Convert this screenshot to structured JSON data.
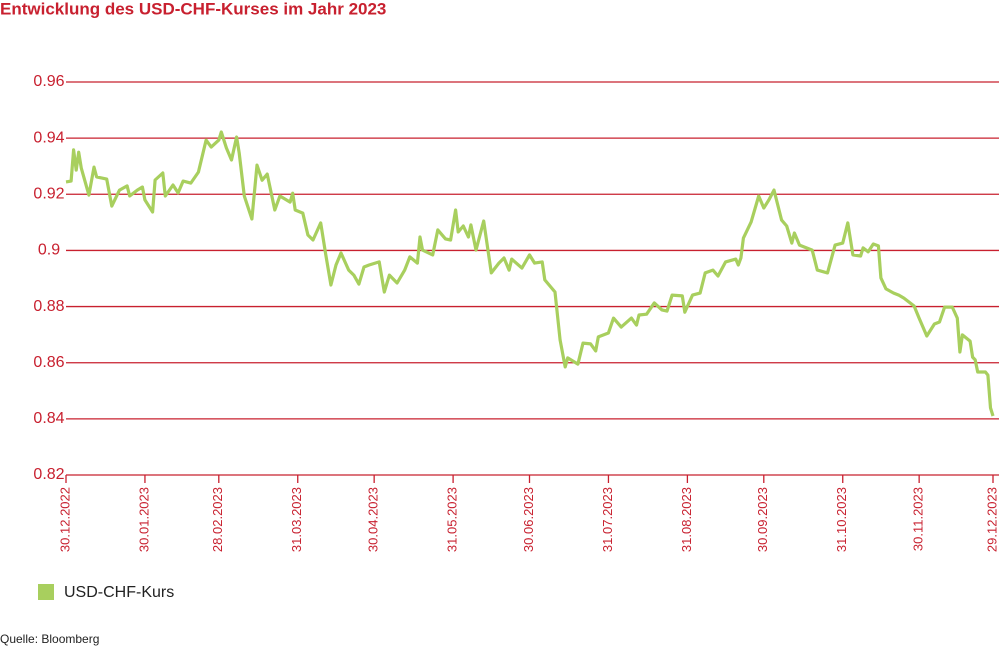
{
  "chart_data": {
    "type": "line",
    "title": "Entwicklung des USD-CHF-Kurses im Jahr 2023",
    "source": "Quelle: Bloomberg",
    "grid": true,
    "legend": "bottom-left",
    "x": [
      "2022-12-30",
      "2023-01-01",
      "2023-01-02",
      "2023-01-03",
      "2023-01-04",
      "2023-01-05",
      "2023-01-08",
      "2023-01-10",
      "2023-01-11",
      "2023-01-15",
      "2023-01-17",
      "2023-01-20",
      "2023-01-23",
      "2023-01-24",
      "2023-01-27",
      "2023-01-29",
      "2023-01-30",
      "2023-02-02",
      "2023-02-03",
      "2023-02-06",
      "2023-02-07",
      "2023-02-10",
      "2023-02-12",
      "2023-02-14",
      "2023-02-17",
      "2023-02-20",
      "2023-02-23",
      "2023-02-25",
      "2023-02-28",
      "2023-03-01",
      "2023-03-03",
      "2023-03-05",
      "2023-03-07",
      "2023-03-08",
      "2023-03-10",
      "2023-03-13",
      "2023-03-15",
      "2023-03-17",
      "2023-03-19",
      "2023-03-22",
      "2023-03-24",
      "2023-03-28",
      "2023-03-29",
      "2023-03-30",
      "2023-04-02",
      "2023-04-04",
      "2023-04-06",
      "2023-04-09",
      "2023-04-11",
      "2023-04-13",
      "2023-04-15",
      "2023-04-17",
      "2023-04-20",
      "2023-04-22",
      "2023-04-24",
      "2023-04-26",
      "2023-04-28",
      "2023-05-02",
      "2023-05-04",
      "2023-05-06",
      "2023-05-09",
      "2023-05-12",
      "2023-05-14",
      "2023-05-17",
      "2023-05-18",
      "2023-05-19",
      "2023-05-23",
      "2023-05-25",
      "2023-05-28",
      "2023-05-30",
      "2023-06-01",
      "2023-06-02",
      "2023-06-04",
      "2023-06-06",
      "2023-06-07",
      "2023-06-09",
      "2023-06-12",
      "2023-06-15",
      "2023-06-18",
      "2023-06-20",
      "2023-06-22",
      "2023-06-23",
      "2023-06-27",
      "2023-06-30",
      "2023-07-02",
      "2023-07-05",
      "2023-07-06",
      "2023-07-10",
      "2023-07-12",
      "2023-07-14",
      "2023-07-15",
      "2023-07-19",
      "2023-07-21",
      "2023-07-24",
      "2023-07-26",
      "2023-07-27",
      "2023-07-31",
      "2023-08-02",
      "2023-08-05",
      "2023-08-09",
      "2023-08-11",
      "2023-08-12",
      "2023-08-15",
      "2023-08-18",
      "2023-08-21",
      "2023-08-23",
      "2023-08-25",
      "2023-08-29",
      "2023-08-30",
      "2023-09-02",
      "2023-09-05",
      "2023-09-07",
      "2023-09-10",
      "2023-09-12",
      "2023-09-15",
      "2023-09-19",
      "2023-09-20",
      "2023-09-21",
      "2023-09-22",
      "2023-09-25",
      "2023-09-28",
      "2023-09-30",
      "2023-10-02",
      "2023-10-04",
      "2023-10-07",
      "2023-10-09",
      "2023-10-11",
      "2023-10-12",
      "2023-10-14",
      "2023-10-19",
      "2023-10-21",
      "2023-10-25",
      "2023-10-28",
      "2023-10-31",
      "2023-11-02",
      "2023-11-04",
      "2023-11-07",
      "2023-11-08",
      "2023-11-10",
      "2023-11-12",
      "2023-11-14",
      "2023-11-15",
      "2023-11-17",
      "2023-11-20",
      "2023-11-22",
      "2023-11-24",
      "2023-11-28",
      "2023-11-30",
      "2023-12-03",
      "2023-12-06",
      "2023-12-08",
      "2023-12-10",
      "2023-12-13",
      "2023-12-15",
      "2023-12-16",
      "2023-12-17",
      "2023-12-20",
      "2023-12-21",
      "2023-12-22",
      "2023-12-23",
      "2023-12-26",
      "2023-12-27",
      "2023-12-28",
      "2023-12-29"
    ],
    "series": [
      {
        "name": "USD-CHF-Kurs",
        "color": "#a8cf5e",
        "values": [
          0.9244,
          0.9247,
          0.9358,
          0.9286,
          0.935,
          0.9293,
          0.9197,
          0.9297,
          0.9262,
          0.9254,
          0.9158,
          0.9215,
          0.923,
          0.9194,
          0.9215,
          0.9226,
          0.918,
          0.9137,
          0.9251,
          0.9276,
          0.9194,
          0.9233,
          0.9205,
          0.9247,
          0.924,
          0.9279,
          0.9393,
          0.9368,
          0.9393,
          0.9422,
          0.9365,
          0.9322,
          0.9404,
          0.9347,
          0.9194,
          0.9112,
          0.9304,
          0.925,
          0.9272,
          0.9144,
          0.9194,
          0.9172,
          0.9204,
          0.9144,
          0.9133,
          0.9055,
          0.9037,
          0.9098,
          0.8984,
          0.8877,
          0.8948,
          0.8991,
          0.893,
          0.8912,
          0.888,
          0.8941,
          0.8948,
          0.8959,
          0.8852,
          0.8912,
          0.8884,
          0.893,
          0.8977,
          0.8955,
          0.9048,
          0.9001,
          0.8984,
          0.9073,
          0.9041,
          0.9037,
          0.9144,
          0.9066,
          0.9087,
          0.9048,
          0.9091,
          0.9001,
          0.9105,
          0.892,
          0.8955,
          0.8973,
          0.893,
          0.8969,
          0.8937,
          0.8984,
          0.8955,
          0.8959,
          0.8895,
          0.8852,
          0.8681,
          0.8585,
          0.8617,
          0.8595,
          0.867,
          0.8667,
          0.8642,
          0.8692,
          0.8706,
          0.8759,
          0.8727,
          0.8759,
          0.8734,
          0.877,
          0.8773,
          0.8813,
          0.8788,
          0.8784,
          0.8841,
          0.8838,
          0.878,
          0.8841,
          0.8848,
          0.892,
          0.893,
          0.8909,
          0.8959,
          0.8969,
          0.8948,
          0.8973,
          0.9044,
          0.9101,
          0.9194,
          0.9151,
          0.918,
          0.9215,
          0.9108,
          0.9087,
          0.9026,
          0.9062,
          0.9019,
          0.9001,
          0.893,
          0.892,
          0.9019,
          0.9026,
          0.9098,
          0.8984,
          0.898,
          0.9009,
          0.8995,
          0.9023,
          0.9016,
          0.8902,
          0.8863,
          0.8848,
          0.8841,
          0.883,
          0.8802,
          0.8759,
          0.8695,
          0.8738,
          0.8745,
          0.8798,
          0.8798,
          0.8759,
          0.8638,
          0.8699,
          0.8677,
          0.862,
          0.861,
          0.8567,
          0.8567,
          0.8556,
          0.8439,
          0.841
        ]
      }
    ],
    "xlim": [
      "2022-12-30",
      "2023-12-29"
    ],
    "xticks": [
      {
        "value": "2022-12-30",
        "label": "30.12.2022"
      },
      {
        "value": "2023-01-30",
        "label": "30.01.2023"
      },
      {
        "value": "2023-02-28",
        "label": "28.02.2023"
      },
      {
        "value": "2023-03-31",
        "label": "31.03.2023"
      },
      {
        "value": "2023-04-30",
        "label": "30.04.2023"
      },
      {
        "value": "2023-05-31",
        "label": "31.05.2023"
      },
      {
        "value": "2023-06-30",
        "label": "30.06.2023"
      },
      {
        "value": "2023-07-31",
        "label": "31.07.2023"
      },
      {
        "value": "2023-08-31",
        "label": "31.08.2023"
      },
      {
        "value": "2023-09-30",
        "label": "30.09.2023"
      },
      {
        "value": "2023-10-31",
        "label": "31.10.2023"
      },
      {
        "value": "2023-11-30",
        "label": "30.11.2023"
      },
      {
        "value": "2023-12-29",
        "label": "29.12.2023"
      }
    ],
    "ylim": [
      0.82,
      0.96
    ],
    "yticks": [
      0.82,
      0.84,
      0.86,
      0.88,
      0.9,
      0.92,
      0.94,
      0.96
    ]
  }
}
